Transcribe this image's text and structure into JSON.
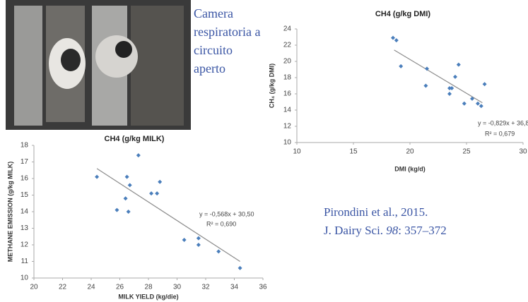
{
  "caption": "Camera respiratoria a circuito aperto",
  "reference": {
    "line1": "Pirondini et al., 2015.",
    "journal": "J. Dairy Sci.",
    "volume": "98",
    "pages": ": 357–372"
  },
  "chart_data": [
    {
      "type": "scatter",
      "title": "CH4 (g/kg DMI)",
      "x_label": "DMI (kg/d)",
      "y_label": "CH₄ (g/kg DMI)",
      "xlim": [
        10,
        30
      ],
      "xticks": [
        10,
        15,
        20,
        25,
        30
      ],
      "ylim": [
        10,
        24
      ],
      "yticks": [
        10,
        12,
        14,
        16,
        18,
        20,
        22,
        24
      ],
      "grid": false,
      "series": [
        {
          "color": "#4a7ebb",
          "x": [
            18.5,
            18.8,
            19.2,
            21.5,
            21.4,
            23.5,
            23.7,
            23.5,
            24.0,
            24.3,
            24.8,
            25.5,
            26.0,
            26.3,
            26.6
          ],
          "values": [
            22.9,
            22.6,
            19.4,
            19.1,
            17.0,
            16.7,
            16.7,
            16.0,
            18.1,
            19.6,
            14.8,
            15.4,
            14.8,
            14.5,
            17.2
          ]
        }
      ],
      "trendline": {
        "color": "#8c8c8c",
        "x": [
          18.6,
          26.4
        ],
        "y": [
          21.4,
          14.9
        ],
        "equation": "y = -0,829x + 36,8",
        "r2": "R² = 0,679"
      }
    },
    {
      "type": "scatter",
      "title": "CH4 (g/kg MILK)",
      "x_label": "MILK YIELD (kg/die)",
      "y_label": "METHANE EMISSION (g/kg MILK)",
      "xlim": [
        20,
        36
      ],
      "xticks": [
        20,
        22,
        24,
        26,
        28,
        30,
        32,
        34,
        36
      ],
      "ylim": [
        10,
        18
      ],
      "yticks": [
        10,
        11,
        12,
        13,
        14,
        15,
        16,
        17,
        18
      ],
      "grid": false,
      "series": [
        {
          "color": "#4a7ebb",
          "x": [
            24.4,
            25.8,
            26.4,
            26.5,
            26.6,
            26.7,
            27.3,
            28.2,
            28.6,
            28.8,
            30.5,
            31.5,
            31.5,
            32.9,
            34.4
          ],
          "values": [
            16.1,
            14.1,
            14.8,
            16.1,
            14.0,
            15.6,
            17.4,
            15.1,
            15.1,
            15.8,
            12.3,
            12.4,
            12.0,
            11.6,
            10.6
          ]
        }
      ],
      "trendline": {
        "color": "#8c8c8c",
        "x": [
          24.4,
          34.4
        ],
        "y": [
          16.6,
          11.0
        ],
        "equation": "y = -0,568x + 30,50",
        "r2": "R² = 0,690"
      }
    }
  ]
}
